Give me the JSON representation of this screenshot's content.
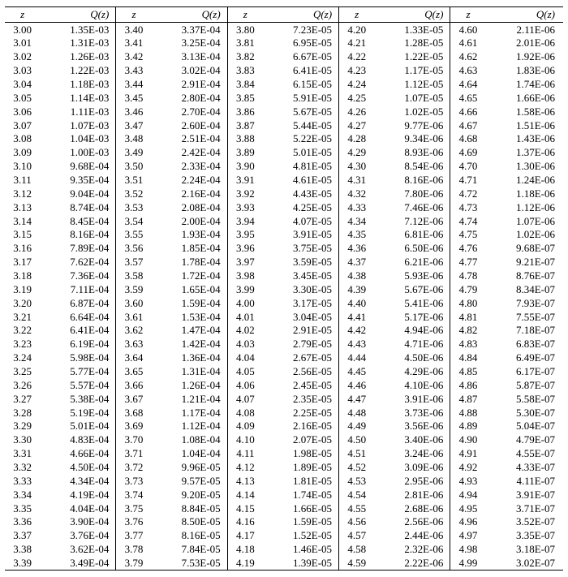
{
  "header": {
    "z": "z",
    "q": "Q(z)"
  },
  "style": {
    "font_family": "Times New Roman",
    "font_size_pt": 10,
    "border_color": "#000000",
    "background_color": "#ffffff",
    "text_color": "#000000"
  },
  "columns": [
    [
      {
        "z": "3.00",
        "q": "1.35E-03"
      },
      {
        "z": "3.01",
        "q": "1.31E-03"
      },
      {
        "z": "3.02",
        "q": "1.26E-03"
      },
      {
        "z": "3.03",
        "q": "1.22E-03"
      },
      {
        "z": "3.04",
        "q": "1.18E-03"
      },
      {
        "z": "3.05",
        "q": "1.14E-03"
      },
      {
        "z": "3.06",
        "q": "1.11E-03"
      },
      {
        "z": "3.07",
        "q": "1.07E-03"
      },
      {
        "z": "3.08",
        "q": "1.04E-03"
      },
      {
        "z": "3.09",
        "q": "1.00E-03"
      },
      {
        "z": "3.10",
        "q": "9.68E-04"
      },
      {
        "z": "3.11",
        "q": "9.35E-04"
      },
      {
        "z": "3.12",
        "q": "9.04E-04"
      },
      {
        "z": "3.13",
        "q": "8.74E-04"
      },
      {
        "z": "3.14",
        "q": "8.45E-04"
      },
      {
        "z": "3.15",
        "q": "8.16E-04"
      },
      {
        "z": "3.16",
        "q": "7.89E-04"
      },
      {
        "z": "3.17",
        "q": "7.62E-04"
      },
      {
        "z": "3.18",
        "q": "7.36E-04"
      },
      {
        "z": "3.19",
        "q": "7.11E-04"
      },
      {
        "z": "3.20",
        "q": "6.87E-04"
      },
      {
        "z": "3.21",
        "q": "6.64E-04"
      },
      {
        "z": "3.22",
        "q": "6.41E-04"
      },
      {
        "z": "3.23",
        "q": "6.19E-04"
      },
      {
        "z": "3.24",
        "q": "5.98E-04"
      },
      {
        "z": "3.25",
        "q": "5.77E-04"
      },
      {
        "z": "3.26",
        "q": "5.57E-04"
      },
      {
        "z": "3.27",
        "q": "5.38E-04"
      },
      {
        "z": "3.28",
        "q": "5.19E-04"
      },
      {
        "z": "3.29",
        "q": "5.01E-04"
      },
      {
        "z": "3.30",
        "q": "4.83E-04"
      },
      {
        "z": "3.31",
        "q": "4.66E-04"
      },
      {
        "z": "3.32",
        "q": "4.50E-04"
      },
      {
        "z": "3.33",
        "q": "4.34E-04"
      },
      {
        "z": "3.34",
        "q": "4.19E-04"
      },
      {
        "z": "3.35",
        "q": "4.04E-04"
      },
      {
        "z": "3.36",
        "q": "3.90E-04"
      },
      {
        "z": "3.37",
        "q": "3.76E-04"
      },
      {
        "z": "3.38",
        "q": "3.62E-04"
      },
      {
        "z": "3.39",
        "q": "3.49E-04"
      }
    ],
    [
      {
        "z": "3.40",
        "q": "3.37E-04"
      },
      {
        "z": "3.41",
        "q": "3.25E-04"
      },
      {
        "z": "3.42",
        "q": "3.13E-04"
      },
      {
        "z": "3.43",
        "q": "3.02E-04"
      },
      {
        "z": "3.44",
        "q": "2.91E-04"
      },
      {
        "z": "3.45",
        "q": "2.80E-04"
      },
      {
        "z": "3.46",
        "q": "2.70E-04"
      },
      {
        "z": "3.47",
        "q": "2.60E-04"
      },
      {
        "z": "3.48",
        "q": "2.51E-04"
      },
      {
        "z": "3.49",
        "q": "2.42E-04"
      },
      {
        "z": "3.50",
        "q": "2.33E-04"
      },
      {
        "z": "3.51",
        "q": "2.24E-04"
      },
      {
        "z": "3.52",
        "q": "2.16E-04"
      },
      {
        "z": "3.53",
        "q": "2.08E-04"
      },
      {
        "z": "3.54",
        "q": "2.00E-04"
      },
      {
        "z": "3.55",
        "q": "1.93E-04"
      },
      {
        "z": "3.56",
        "q": "1.85E-04"
      },
      {
        "z": "3.57",
        "q": "1.78E-04"
      },
      {
        "z": "3.58",
        "q": "1.72E-04"
      },
      {
        "z": "3.59",
        "q": "1.65E-04"
      },
      {
        "z": "3.60",
        "q": "1.59E-04"
      },
      {
        "z": "3.61",
        "q": "1.53E-04"
      },
      {
        "z": "3.62",
        "q": "1.47E-04"
      },
      {
        "z": "3.63",
        "q": "1.42E-04"
      },
      {
        "z": "3.64",
        "q": "1.36E-04"
      },
      {
        "z": "3.65",
        "q": "1.31E-04"
      },
      {
        "z": "3.66",
        "q": "1.26E-04"
      },
      {
        "z": "3.67",
        "q": "1.21E-04"
      },
      {
        "z": "3.68",
        "q": "1.17E-04"
      },
      {
        "z": "3.69",
        "q": "1.12E-04"
      },
      {
        "z": "3.70",
        "q": "1.08E-04"
      },
      {
        "z": "3.71",
        "q": "1.04E-04"
      },
      {
        "z": "3.72",
        "q": "9.96E-05"
      },
      {
        "z": "3.73",
        "q": "9.57E-05"
      },
      {
        "z": "3.74",
        "q": "9.20E-05"
      },
      {
        "z": "3.75",
        "q": "8.84E-05"
      },
      {
        "z": "3.76",
        "q": "8.50E-05"
      },
      {
        "z": "3.77",
        "q": "8.16E-05"
      },
      {
        "z": "3.78",
        "q": "7.84E-05"
      },
      {
        "z": "3.79",
        "q": "7.53E-05"
      }
    ],
    [
      {
        "z": "3.80",
        "q": "7.23E-05"
      },
      {
        "z": "3.81",
        "q": "6.95E-05"
      },
      {
        "z": "3.82",
        "q": "6.67E-05"
      },
      {
        "z": "3.83",
        "q": "6.41E-05"
      },
      {
        "z": "3.84",
        "q": "6.15E-05"
      },
      {
        "z": "3.85",
        "q": "5.91E-05"
      },
      {
        "z": "3.86",
        "q": "5.67E-05"
      },
      {
        "z": "3.87",
        "q": "5.44E-05"
      },
      {
        "z": "3.88",
        "q": "5.22E-05"
      },
      {
        "z": "3.89",
        "q": "5.01E-05"
      },
      {
        "z": "3.90",
        "q": "4.81E-05"
      },
      {
        "z": "3.91",
        "q": "4.61E-05"
      },
      {
        "z": "3.92",
        "q": "4.43E-05"
      },
      {
        "z": "3.93",
        "q": "4.25E-05"
      },
      {
        "z": "3.94",
        "q": "4.07E-05"
      },
      {
        "z": "3.95",
        "q": "3.91E-05"
      },
      {
        "z": "3.96",
        "q": "3.75E-05"
      },
      {
        "z": "3.97",
        "q": "3.59E-05"
      },
      {
        "z": "3.98",
        "q": "3.45E-05"
      },
      {
        "z": "3.99",
        "q": "3.30E-05"
      },
      {
        "z": "4.00",
        "q": "3.17E-05"
      },
      {
        "z": "4.01",
        "q": "3.04E-05"
      },
      {
        "z": "4.02",
        "q": "2.91E-05"
      },
      {
        "z": "4.03",
        "q": "2.79E-05"
      },
      {
        "z": "4.04",
        "q": "2.67E-05"
      },
      {
        "z": "4.05",
        "q": "2.56E-05"
      },
      {
        "z": "4.06",
        "q": "2.45E-05"
      },
      {
        "z": "4.07",
        "q": "2.35E-05"
      },
      {
        "z": "4.08",
        "q": "2.25E-05"
      },
      {
        "z": "4.09",
        "q": "2.16E-05"
      },
      {
        "z": "4.10",
        "q": "2.07E-05"
      },
      {
        "z": "4.11",
        "q": "1.98E-05"
      },
      {
        "z": "4.12",
        "q": "1.89E-05"
      },
      {
        "z": "4.13",
        "q": "1.81E-05"
      },
      {
        "z": "4.14",
        "q": "1.74E-05"
      },
      {
        "z": "4.15",
        "q": "1.66E-05"
      },
      {
        "z": "4.16",
        "q": "1.59E-05"
      },
      {
        "z": "4.17",
        "q": "1.52E-05"
      },
      {
        "z": "4.18",
        "q": "1.46E-05"
      },
      {
        "z": "4.19",
        "q": "1.39E-05"
      }
    ],
    [
      {
        "z": "4.20",
        "q": "1.33E-05"
      },
      {
        "z": "4.21",
        "q": "1.28E-05"
      },
      {
        "z": "4.22",
        "q": "1.22E-05"
      },
      {
        "z": "4.23",
        "q": "1.17E-05"
      },
      {
        "z": "4.24",
        "q": "1.12E-05"
      },
      {
        "z": "4.25",
        "q": "1.07E-05"
      },
      {
        "z": "4.26",
        "q": "1.02E-05"
      },
      {
        "z": "4.27",
        "q": "9.77E-06"
      },
      {
        "z": "4.28",
        "q": "9.34E-06"
      },
      {
        "z": "4.29",
        "q": "8.93E-06"
      },
      {
        "z": "4.30",
        "q": "8.54E-06"
      },
      {
        "z": "4.31",
        "q": "8.16E-06"
      },
      {
        "z": "4.32",
        "q": "7.80E-06"
      },
      {
        "z": "4.33",
        "q": "7.46E-06"
      },
      {
        "z": "4.34",
        "q": "7.12E-06"
      },
      {
        "z": "4.35",
        "q": "6.81E-06"
      },
      {
        "z": "4.36",
        "q": "6.50E-06"
      },
      {
        "z": "4.37",
        "q": "6.21E-06"
      },
      {
        "z": "4.38",
        "q": "5.93E-06"
      },
      {
        "z": "4.39",
        "q": "5.67E-06"
      },
      {
        "z": "4.40",
        "q": "5.41E-06"
      },
      {
        "z": "4.41",
        "q": "5.17E-06"
      },
      {
        "z": "4.42",
        "q": "4.94E-06"
      },
      {
        "z": "4.43",
        "q": "4.71E-06"
      },
      {
        "z": "4.44",
        "q": "4.50E-06"
      },
      {
        "z": "4.45",
        "q": "4.29E-06"
      },
      {
        "z": "4.46",
        "q": "4.10E-06"
      },
      {
        "z": "4.47",
        "q": "3.91E-06"
      },
      {
        "z": "4.48",
        "q": "3.73E-06"
      },
      {
        "z": "4.49",
        "q": "3.56E-06"
      },
      {
        "z": "4.50",
        "q": "3.40E-06"
      },
      {
        "z": "4.51",
        "q": "3.24E-06"
      },
      {
        "z": "4.52",
        "q": "3.09E-06"
      },
      {
        "z": "4.53",
        "q": "2.95E-06"
      },
      {
        "z": "4.54",
        "q": "2.81E-06"
      },
      {
        "z": "4.55",
        "q": "2.68E-06"
      },
      {
        "z": "4.56",
        "q": "2.56E-06"
      },
      {
        "z": "4.57",
        "q": "2.44E-06"
      },
      {
        "z": "4.58",
        "q": "2.32E-06"
      },
      {
        "z": "4.59",
        "q": "2.22E-06"
      }
    ],
    [
      {
        "z": "4.60",
        "q": "2.11E-06"
      },
      {
        "z": "4.61",
        "q": "2.01E-06"
      },
      {
        "z": "4.62",
        "q": "1.92E-06"
      },
      {
        "z": "4.63",
        "q": "1.83E-06"
      },
      {
        "z": "4.64",
        "q": "1.74E-06"
      },
      {
        "z": "4.65",
        "q": "1.66E-06"
      },
      {
        "z": "4.66",
        "q": "1.58E-06"
      },
      {
        "z": "4.67",
        "q": "1.51E-06"
      },
      {
        "z": "4.68",
        "q": "1.43E-06"
      },
      {
        "z": "4.69",
        "q": "1.37E-06"
      },
      {
        "z": "4.70",
        "q": "1.30E-06"
      },
      {
        "z": "4.71",
        "q": "1.24E-06"
      },
      {
        "z": "4.72",
        "q": "1.18E-06"
      },
      {
        "z": "4.73",
        "q": "1.12E-06"
      },
      {
        "z": "4.74",
        "q": "1.07E-06"
      },
      {
        "z": "4.75",
        "q": "1.02E-06"
      },
      {
        "z": "4.76",
        "q": "9.68E-07"
      },
      {
        "z": "4.77",
        "q": "9.21E-07"
      },
      {
        "z": "4.78",
        "q": "8.76E-07"
      },
      {
        "z": "4.79",
        "q": "8.34E-07"
      },
      {
        "z": "4.80",
        "q": "7.93E-07"
      },
      {
        "z": "4.81",
        "q": "7.55E-07"
      },
      {
        "z": "4.82",
        "q": "7.18E-07"
      },
      {
        "z": "4.83",
        "q": "6.83E-07"
      },
      {
        "z": "4.84",
        "q": "6.49E-07"
      },
      {
        "z": "4.85",
        "q": "6.17E-07"
      },
      {
        "z": "4.86",
        "q": "5.87E-07"
      },
      {
        "z": "4.87",
        "q": "5.58E-07"
      },
      {
        "z": "4.88",
        "q": "5.30E-07"
      },
      {
        "z": "4.89",
        "q": "5.04E-07"
      },
      {
        "z": "4.90",
        "q": "4.79E-07"
      },
      {
        "z": "4.91",
        "q": "4.55E-07"
      },
      {
        "z": "4.92",
        "q": "4.33E-07"
      },
      {
        "z": "4.93",
        "q": "4.11E-07"
      },
      {
        "z": "4.94",
        "q": "3.91E-07"
      },
      {
        "z": "4.95",
        "q": "3.71E-07"
      },
      {
        "z": "4.96",
        "q": "3.52E-07"
      },
      {
        "z": "4.97",
        "q": "3.35E-07"
      },
      {
        "z": "4.98",
        "q": "3.18E-07"
      },
      {
        "z": "4.99",
        "q": "3.02E-07"
      }
    ]
  ]
}
